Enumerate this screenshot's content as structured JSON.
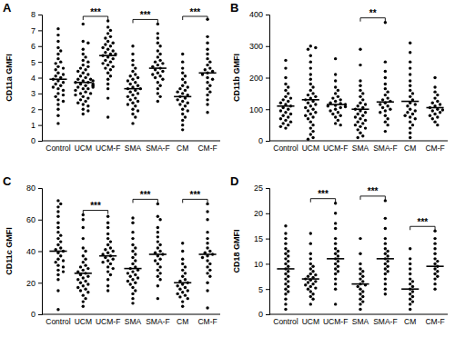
{
  "chart_data": [
    {
      "type": "scatter",
      "title": "A",
      "y_label": "CD11a GMFI",
      "color": "#000000",
      "marker": "circle",
      "categories": [
        "Control",
        "UCM",
        "UCM-F",
        "SMA",
        "SMA-F",
        "CM",
        "CM-F"
      ],
      "values": [
        [
          7.1,
          6.7,
          6.3,
          5.9,
          5.7,
          5.5,
          5.2,
          5.0,
          4.9,
          4.7,
          4.6,
          4.5,
          4.3,
          4.2,
          4.1,
          4.0,
          3.9,
          3.8,
          3.7,
          3.6,
          3.5,
          3.4,
          3.3,
          3.2,
          3.0,
          2.9,
          2.8,
          2.6,
          2.5,
          2.3,
          2.0,
          1.6,
          1.1
        ],
        [
          7.4,
          6.3,
          6.2,
          5.8,
          5.5,
          5.3,
          5.1,
          5.0,
          4.8,
          4.7,
          4.6,
          4.5,
          4.4,
          4.3,
          4.2,
          4.1,
          4.0,
          3.9,
          3.9,
          3.8,
          3.8,
          3.7,
          3.7,
          3.6,
          3.6,
          3.5,
          3.5,
          3.4,
          3.4,
          3.3,
          3.3,
          3.2,
          3.1,
          3.0,
          3.0,
          2.9,
          2.8,
          2.7,
          2.6,
          2.5,
          2.4,
          2.3,
          2.2,
          2.0,
          1.9,
          1.7
        ],
        [
          7.6,
          7.2,
          7.0,
          6.8,
          6.6,
          6.5,
          6.3,
          6.2,
          6.1,
          6.0,
          5.9,
          5.8,
          5.7,
          5.6,
          5.5,
          5.5,
          5.4,
          5.3,
          5.2,
          5.1,
          5.0,
          4.9,
          4.8,
          4.7,
          4.6,
          4.5,
          4.3,
          4.1,
          3.9,
          3.6,
          3.3,
          2.7,
          1.5
        ],
        [
          6.0,
          5.5,
          5.1,
          4.8,
          4.6,
          4.4,
          4.2,
          4.1,
          4.0,
          3.9,
          3.8,
          3.7,
          3.6,
          3.5,
          3.4,
          3.3,
          3.3,
          3.2,
          3.1,
          3.0,
          2.9,
          2.8,
          2.7,
          2.6,
          2.5,
          2.4,
          2.3,
          2.2,
          2.0,
          1.9,
          1.7,
          1.5,
          1.1
        ],
        [
          7.4,
          6.8,
          6.5,
          6.2,
          6.0,
          5.7,
          5.5,
          5.3,
          5.1,
          5.0,
          4.9,
          4.8,
          4.7,
          4.6,
          4.5,
          4.4,
          4.3,
          4.2,
          4.1,
          4.0,
          3.9,
          3.7,
          3.5,
          3.3,
          3.0,
          2.8,
          2.5
        ],
        [
          5.5,
          5.0,
          4.6,
          4.3,
          4.1,
          3.9,
          3.7,
          3.5,
          3.4,
          3.3,
          3.2,
          3.1,
          3.0,
          2.9,
          2.8,
          2.7,
          2.6,
          2.5,
          2.4,
          2.3,
          2.2,
          2.0,
          1.9,
          1.7,
          1.5,
          1.3,
          1.0,
          0.7
        ],
        [
          7.7,
          6.6,
          6.2,
          5.8,
          5.5,
          5.2,
          5.0,
          4.8,
          4.6,
          4.5,
          4.4,
          4.3,
          4.2,
          4.0,
          3.9,
          3.7,
          3.5,
          3.3,
          3.1,
          2.9,
          2.6,
          2.3,
          1.8
        ]
      ],
      "means": [
        3.9,
        3.7,
        5.4,
        3.3,
        4.6,
        2.8,
        4.3
      ],
      "ylim": [
        0,
        8
      ],
      "yticks": [
        0,
        1,
        2,
        3,
        4,
        5,
        6,
        7,
        8
      ],
      "annotations": [
        {
          "categories": [
            "UCM",
            "UCM-F"
          ],
          "text": "***"
        },
        {
          "categories": [
            "SMA",
            "SMA-F"
          ],
          "text": "***"
        },
        {
          "categories": [
            "CM",
            "CM-F"
          ],
          "text": "***"
        }
      ]
    },
    {
      "type": "scatter",
      "title": "B",
      "y_label": "CD11b GMFI",
      "color": "#000000",
      "marker": "circle",
      "categories": [
        "Control",
        "UCM",
        "UCM-F",
        "SMA",
        "SMA-F",
        "CM",
        "CM-F"
      ],
      "values": [
        [
          255,
          230,
          200,
          180,
          170,
          160,
          150,
          140,
          135,
          130,
          125,
          120,
          115,
          110,
          105,
          100,
          95,
          90,
          85,
          80,
          75,
          70,
          65,
          60,
          55,
          50,
          45,
          40
        ],
        [
          300,
          295,
          290,
          270,
          250,
          230,
          210,
          195,
          180,
          170,
          160,
          150,
          145,
          140,
          135,
          130,
          125,
          120,
          115,
          110,
          105,
          100,
          95,
          90,
          85,
          80,
          75,
          70,
          60,
          50,
          40,
          30,
          20,
          10,
          5
        ],
        [
          260,
          210,
          190,
          170,
          160,
          150,
          140,
          135,
          130,
          125,
          120,
          118,
          115,
          112,
          110,
          108,
          105,
          100,
          95,
          90,
          85,
          80,
          75,
          65,
          55,
          50
        ],
        [
          290,
          240,
          190,
          175,
          160,
          150,
          140,
          130,
          120,
          115,
          110,
          105,
          100,
          95,
          90,
          85,
          80,
          75,
          70,
          65,
          60,
          55,
          50,
          45,
          40,
          35,
          25,
          15,
          10
        ],
        [
          375,
          250,
          220,
          200,
          180,
          165,
          155,
          145,
          135,
          130,
          125,
          120,
          115,
          110,
          105,
          100,
          95,
          90,
          80,
          70,
          60,
          50,
          30
        ],
        [
          310,
          280,
          250,
          230,
          210,
          190,
          175,
          160,
          150,
          140,
          130,
          120,
          115,
          110,
          100,
          95,
          90,
          85,
          80,
          75,
          70,
          60,
          50,
          40,
          25,
          10
        ],
        [
          200,
          170,
          155,
          145,
          135,
          125,
          120,
          115,
          110,
          105,
          100,
          98,
          95,
          90,
          85,
          80,
          75,
          70,
          60,
          50
        ]
      ],
      "means": [
        110,
        130,
        115,
        100,
        123,
        125,
        105
      ],
      "ylim": [
        0,
        400
      ],
      "yticks": [
        0,
        100,
        200,
        300,
        400
      ],
      "annotations": [
        {
          "categories": [
            "SMA",
            "SMA-F"
          ],
          "text": "**"
        }
      ]
    },
    {
      "type": "scatter",
      "title": "C",
      "y_label": "CD11c GMFI",
      "color": "#000000",
      "marker": "circle",
      "categories": [
        "Control",
        "UCM",
        "UCM-F",
        "SMA",
        "SMA-F",
        "CM",
        "CM-F"
      ],
      "values": [
        [
          72,
          70,
          68,
          65,
          62,
          58,
          55,
          52,
          50,
          48,
          46,
          44,
          42,
          41,
          40,
          39,
          37,
          35,
          34,
          33,
          31,
          30,
          28,
          27,
          25,
          22,
          15,
          3
        ],
        [
          63,
          60,
          55,
          48,
          42,
          40,
          37,
          35,
          33,
          31,
          30,
          29,
          28,
          27,
          26,
          25,
          24,
          23,
          22,
          21,
          20,
          19,
          18,
          17,
          16,
          15,
          14,
          12,
          10,
          8,
          5
        ],
        [
          62,
          58,
          55,
          51,
          48,
          46,
          44,
          42,
          41,
          40,
          39,
          38,
          37,
          36,
          35,
          34,
          33,
          32,
          30,
          29,
          27,
          25,
          22,
          18,
          15
        ],
        [
          61,
          58,
          52,
          48,
          44,
          42,
          40,
          38,
          36,
          34,
          32,
          30,
          29,
          28,
          27,
          26,
          25,
          24,
          23,
          22,
          21,
          20,
          19,
          17,
          15,
          13,
          10,
          7
        ],
        [
          70,
          62,
          60,
          55,
          52,
          49,
          46,
          44,
          42,
          40,
          39,
          38,
          37,
          35,
          34,
          32,
          30,
          28,
          26,
          24,
          22,
          18,
          10
        ],
        [
          45,
          40,
          35,
          32,
          30,
          28,
          26,
          24,
          22,
          21,
          20,
          19,
          18,
          17,
          16,
          15,
          14,
          13,
          12,
          11,
          10,
          8,
          5
        ],
        [
          70,
          65,
          60,
          52,
          48,
          45,
          42,
          40,
          39,
          38,
          37,
          36,
          34,
          32,
          30,
          28,
          26,
          24,
          20,
          15,
          4
        ]
      ],
      "means": [
        40,
        26,
        37,
        29,
        38,
        20,
        38
      ],
      "ylim": [
        0,
        80
      ],
      "yticks": [
        0,
        20,
        40,
        60,
        80
      ],
      "annotations": [
        {
          "categories": [
            "UCM",
            "UCM-F"
          ],
          "text": "***"
        },
        {
          "categories": [
            "SMA",
            "SMA-F"
          ],
          "text": "***"
        },
        {
          "categories": [
            "CM",
            "CM-F"
          ],
          "text": "***"
        }
      ]
    },
    {
      "type": "scatter",
      "title": "D",
      "y_label": "CD18 GMFI",
      "color": "#000000",
      "marker": "circle",
      "categories": [
        "Control",
        "UCM",
        "UCM-F",
        "SMA",
        "SMA-F",
        "CM",
        "CM-F"
      ],
      "values": [
        [
          17.5,
          16,
          15,
          14,
          13,
          12.5,
          12,
          11.5,
          11,
          10.5,
          10,
          9.5,
          9,
          8.5,
          8,
          7.5,
          7,
          6.5,
          6,
          5.5,
          5,
          4.5,
          4,
          3,
          2,
          1
        ],
        [
          16,
          14,
          12,
          11,
          10,
          9.5,
          9,
          8.5,
          8,
          7.8,
          7.5,
          7.3,
          7,
          6.8,
          6.5,
          6.3,
          6,
          5.8,
          5.5,
          5.2,
          5,
          4.5,
          4,
          3.5,
          3,
          2
        ],
        [
          22,
          20,
          18,
          17,
          15,
          14,
          13,
          12.5,
          12,
          11.5,
          11,
          10.5,
          10,
          9.5,
          9,
          8.5,
          8,
          7,
          6,
          5,
          2
        ],
        [
          15,
          12,
          10,
          9,
          8.5,
          8,
          7.5,
          7,
          6.5,
          6,
          5.8,
          5.5,
          5,
          4.5,
          4,
          3.5,
          3,
          2.5,
          2,
          1
        ],
        [
          22.5,
          19,
          17,
          15,
          14,
          13,
          12.5,
          12,
          11.5,
          11,
          10.5,
          10,
          9.5,
          9,
          8.5,
          8,
          7,
          6,
          5,
          4
        ],
        [
          13,
          11,
          10,
          9,
          8,
          7,
          6.5,
          6,
          5.5,
          5,
          4.5,
          4,
          3.5,
          3,
          2.5,
          2,
          1
        ],
        [
          16.5,
          15,
          14,
          13,
          12,
          11,
          10.5,
          10,
          9.5,
          9,
          8.5,
          8,
          7.5,
          7,
          6,
          5
        ]
      ],
      "means": [
        9,
        7,
        11,
        6,
        11,
        5,
        9.5
      ],
      "ylim": [
        0,
        25
      ],
      "yticks": [
        0,
        5,
        10,
        15,
        20,
        25
      ],
      "annotations": [
        {
          "categories": [
            "UCM",
            "UCM-F"
          ],
          "text": "***"
        },
        {
          "categories": [
            "SMA",
            "SMA-F"
          ],
          "text": "***"
        },
        {
          "categories": [
            "CM",
            "CM-F"
          ],
          "text": "***"
        }
      ]
    }
  ]
}
